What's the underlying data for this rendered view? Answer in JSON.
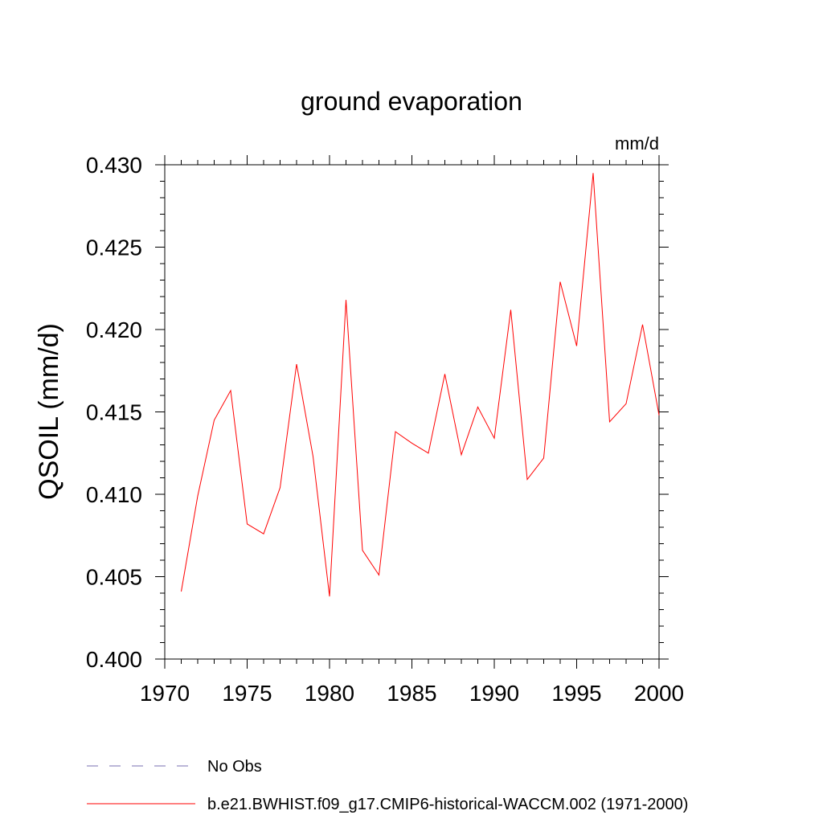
{
  "chart_data": {
    "type": "line",
    "title": "ground evaporation",
    "units_label": "mm/d",
    "xlabel": "",
    "ylabel": "QSOIL  (mm/d)",
    "xlim": [
      1970,
      2000
    ],
    "ylim": [
      0.4,
      0.43
    ],
    "x_ticks": [
      1970,
      1975,
      1980,
      1985,
      1990,
      1995,
      2000
    ],
    "x_tick_labels": [
      "1970",
      "1975",
      "1980",
      "1985",
      "1990",
      "1995",
      "2000"
    ],
    "y_ticks": [
      0.4,
      0.405,
      0.41,
      0.415,
      0.42,
      0.425,
      0.43
    ],
    "y_tick_labels": [
      "0.400",
      "0.405",
      "0.410",
      "0.415",
      "0.420",
      "0.425",
      "0.430"
    ],
    "series": [
      {
        "name": "b.e21.BWHIST.f09_g17.CMIP6-historical-WACCM.002 (1971-2000)",
        "color": "#ff0000",
        "style": "solid",
        "x": [
          1971,
          1972,
          1973,
          1974,
          1975,
          1976,
          1977,
          1978,
          1979,
          1980,
          1981,
          1982,
          1983,
          1984,
          1985,
          1986,
          1987,
          1988,
          1989,
          1990,
          1991,
          1992,
          1993,
          1994,
          1995,
          1996,
          1997,
          1998,
          1999,
          2000
        ],
        "values": [
          0.4041,
          0.4099,
          0.4145,
          0.4163,
          0.4082,
          0.4076,
          0.4104,
          0.4179,
          0.4123,
          0.4038,
          0.4218,
          0.4066,
          0.4051,
          0.4138,
          0.4131,
          0.4125,
          0.4173,
          0.4124,
          0.4153,
          0.4134,
          0.4212,
          0.4109,
          0.4122,
          0.4229,
          0.419,
          0.4295,
          0.4144,
          0.4155,
          0.4203,
          0.4148
        ]
      }
    ],
    "legend": [
      {
        "label": "No Obs",
        "color": "#7a6fb0",
        "style": "dashed"
      },
      {
        "label": "b.e21.BWHIST.f09_g17.CMIP6-historical-WACCM.002 (1971-2000)",
        "color": "#ff0000",
        "style": "solid"
      }
    ],
    "legend_position": "bottom",
    "grid": false
  }
}
